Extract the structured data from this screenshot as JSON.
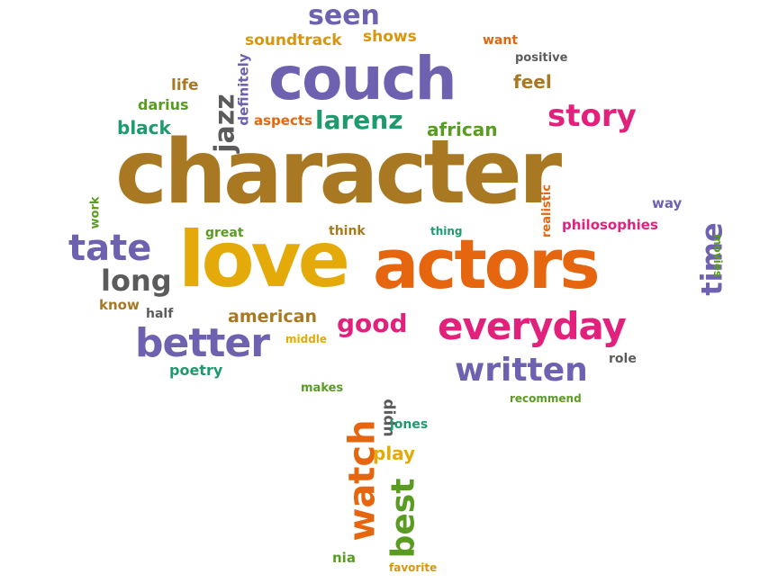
{
  "words": [
    {
      "key": "character",
      "text": "character",
      "color": "#a87922"
    },
    {
      "key": "love",
      "text": "love",
      "color": "#e3aa09"
    },
    {
      "key": "actors",
      "text": "actors",
      "color": "#e5660f"
    },
    {
      "key": "couch",
      "text": "couch",
      "color": "#6e62b0"
    },
    {
      "key": "everyday",
      "text": "everyday",
      "color": "#e2217c"
    },
    {
      "key": "better",
      "text": "better",
      "color": "#6e62b0"
    },
    {
      "key": "written",
      "text": "written",
      "color": "#6e62b0"
    },
    {
      "key": "tate",
      "text": "tate",
      "color": "#6e62b0"
    },
    {
      "key": "story",
      "text": "story",
      "color": "#e2217c"
    },
    {
      "key": "watch",
      "text": "watch",
      "color": "#e5660f"
    },
    {
      "key": "best",
      "text": "best",
      "color": "#5a9c21"
    },
    {
      "key": "seen",
      "text": "seen",
      "color": "#6e62b0"
    },
    {
      "key": "larenz",
      "text": "larenz",
      "color": "#1f9a6e"
    },
    {
      "key": "long",
      "text": "long",
      "color": "#5b5b5b"
    },
    {
      "key": "time",
      "text": "time",
      "color": "#6e62b0"
    },
    {
      "key": "good",
      "text": "good",
      "color": "#e2217c"
    },
    {
      "key": "jazz",
      "text": "jazz",
      "color": "#5b5b5b"
    },
    {
      "key": "african",
      "text": "african",
      "color": "#5a9c21"
    },
    {
      "key": "american",
      "text": "american",
      "color": "#a87922"
    },
    {
      "key": "black",
      "text": "black",
      "color": "#1f9a6e"
    },
    {
      "key": "soundtrack",
      "text": "soundtrack",
      "color": "#d6960e"
    },
    {
      "key": "shows",
      "text": "shows",
      "color": "#d6960e"
    },
    {
      "key": "feel",
      "text": "feel",
      "color": "#a87922"
    },
    {
      "key": "play",
      "text": "play",
      "color": "#e3aa09"
    },
    {
      "key": "philosophies",
      "text": "philosophies",
      "color": "#e2217c"
    },
    {
      "key": "darius",
      "text": "darius",
      "color": "#5a9c21"
    },
    {
      "key": "life",
      "text": "life",
      "color": "#a87922"
    },
    {
      "key": "definitely",
      "text": "definitely",
      "color": "#6e62b0"
    },
    {
      "key": "aspects",
      "text": "aspects",
      "color": "#e5660f"
    },
    {
      "key": "want",
      "text": "want",
      "color": "#e5660f"
    },
    {
      "key": "positive",
      "text": "positive",
      "color": "#5b5b5b"
    },
    {
      "key": "poetry",
      "text": "poetry",
      "color": "#1f9a6e"
    },
    {
      "key": "know",
      "text": "know",
      "color": "#a87922"
    },
    {
      "key": "half",
      "text": "half",
      "color": "#5b5b5b"
    },
    {
      "key": "work",
      "text": "work",
      "color": "#5a9c21"
    },
    {
      "key": "great",
      "text": "great",
      "color": "#5a9c21"
    },
    {
      "key": "think",
      "text": "think",
      "color": "#a87922"
    },
    {
      "key": "thing",
      "text": "thing",
      "color": "#1f9a6e"
    },
    {
      "key": "realistic",
      "text": "realistic",
      "color": "#e5660f"
    },
    {
      "key": "way",
      "text": "way",
      "color": "#6e62b0"
    },
    {
      "key": "movies",
      "text": "movies",
      "color": "#5a9c21"
    },
    {
      "key": "middle",
      "text": "middle",
      "color": "#e3aa09"
    },
    {
      "key": "role",
      "text": "role",
      "color": "#5b5b5b"
    },
    {
      "key": "makes",
      "text": "makes",
      "color": "#5a9c21"
    },
    {
      "key": "recommend",
      "text": "recommend",
      "color": "#5a9c21"
    },
    {
      "key": "didn",
      "text": "didn",
      "color": "#5b5b5b"
    },
    {
      "key": "jones",
      "text": "jones",
      "color": "#1f9a6e"
    },
    {
      "key": "nia",
      "text": "nia",
      "color": "#5a9c21"
    },
    {
      "key": "favorite",
      "text": "favorite",
      "color": "#d6960e"
    }
  ]
}
